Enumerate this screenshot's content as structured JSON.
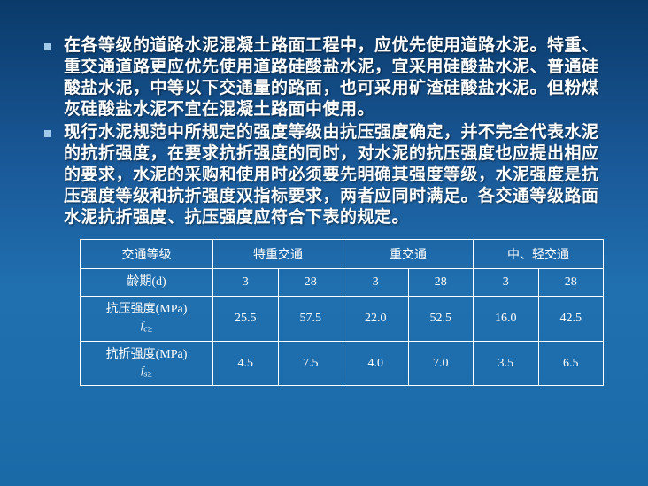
{
  "bullets": [
    "在各等级的道路水泥混凝土路面工程中，应优先使用道路水泥。特重、重交通道路更应优先使用道路硅酸盐水泥，宜采用硅酸盐水泥、普通硅酸盐水泥，中等以下交通量的路面，也可采用矿渣硅酸盐水泥。但粉煤灰硅酸盐水泥不宜在混凝土路面中使用。",
    "现行水泥规范中所规定的强度等级由抗压强度确定，并不完全代表水泥的抗折强度，在要求抗折强度的同时，对水泥的抗压强度也应提出相应的要求，水泥的采购和使用时必须要先明确其强度等级，水泥强度是抗压强度等级和抗折强度双指标要求，两者应同时满足。各交通等级路面水泥抗折强度、抗压强度应符合下表的规定。"
  ],
  "table": {
    "header_col1": "交通等级",
    "traffic_levels": [
      "特重交通",
      "重交通",
      "中、轻交通"
    ],
    "age_label": "龄期(d)",
    "age_values": [
      "3",
      "28",
      "3",
      "28",
      "3",
      "28"
    ],
    "compressive_label": "抗压强度(MPa)",
    "compressive_sub": "f",
    "compressive_suffix": "c≥",
    "compressive_values": [
      "25.5",
      "57.5",
      "22.0",
      "52.5",
      "16.0",
      "42.5"
    ],
    "flexural_label": "抗折强度(MPa)",
    "flexural_sub": "f",
    "flexural_suffix": "s≥",
    "flexural_values": [
      "4.5",
      "7.5",
      "4.0",
      "7.0",
      "3.5",
      "6.5"
    ]
  },
  "colors": {
    "text": "#ffffff",
    "bullet": "#a0c8e8",
    "border": "#ffffff"
  }
}
